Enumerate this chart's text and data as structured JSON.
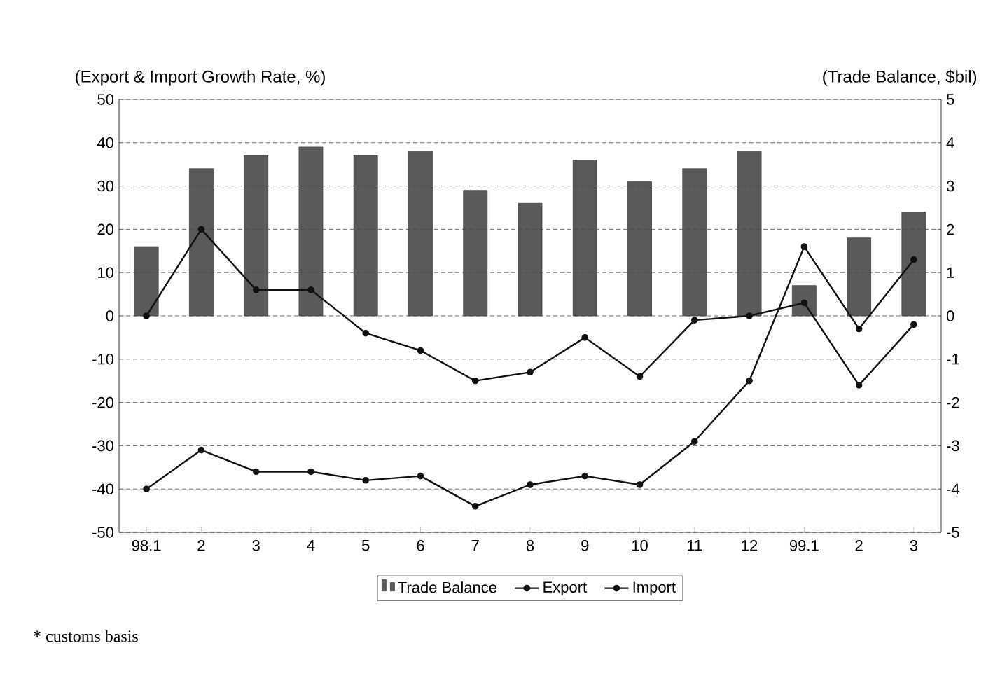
{
  "chart_data": {
    "type": "line",
    "ylabel": "(Export & Import Growth Rate, %)",
    "y2label": "(Trade Balance, $bil)",
    "categories": [
      "98.1",
      "2",
      "3",
      "4",
      "5",
      "6",
      "7",
      "8",
      "9",
      "10",
      "11",
      "12",
      "99.1",
      "2",
      "3"
    ],
    "series": [
      {
        "name": "Trade Balance",
        "type": "bar",
        "axis": "y2",
        "color": "#5a5a5a",
        "values": [
          1.6,
          3.4,
          3.7,
          3.9,
          3.7,
          3.8,
          2.9,
          2.6,
          3.6,
          3.1,
          3.4,
          3.8,
          0.7,
          1.8,
          2.4
        ]
      },
      {
        "name": "Export",
        "color": "#111111",
        "values": [
          0,
          20,
          6,
          6,
          -4,
          -8,
          -15,
          -13,
          -5,
          -14,
          -1,
          0,
          3,
          -16,
          -2
        ]
      },
      {
        "name": "Import",
        "color": "#111111",
        "values": [
          -40,
          -31,
          -36,
          -36,
          -38,
          -37,
          -44,
          -39,
          -37,
          -39,
          -29,
          -15,
          16,
          -3,
          13
        ]
      }
    ],
    "ylim": [
      -50,
      50
    ],
    "yticks": [
      -50,
      -40,
      -30,
      -20,
      -10,
      0,
      10,
      20,
      30,
      40,
      50
    ],
    "y2lim": [
      -5,
      5
    ],
    "y2ticks": [
      -5,
      -4,
      -3,
      -2,
      -1,
      0,
      1,
      2,
      3,
      4,
      5
    ],
    "grid": "y",
    "legend": "bottom",
    "marker": "circle",
    "line_style": "solid",
    "annotations": [
      "* customs basis"
    ]
  }
}
